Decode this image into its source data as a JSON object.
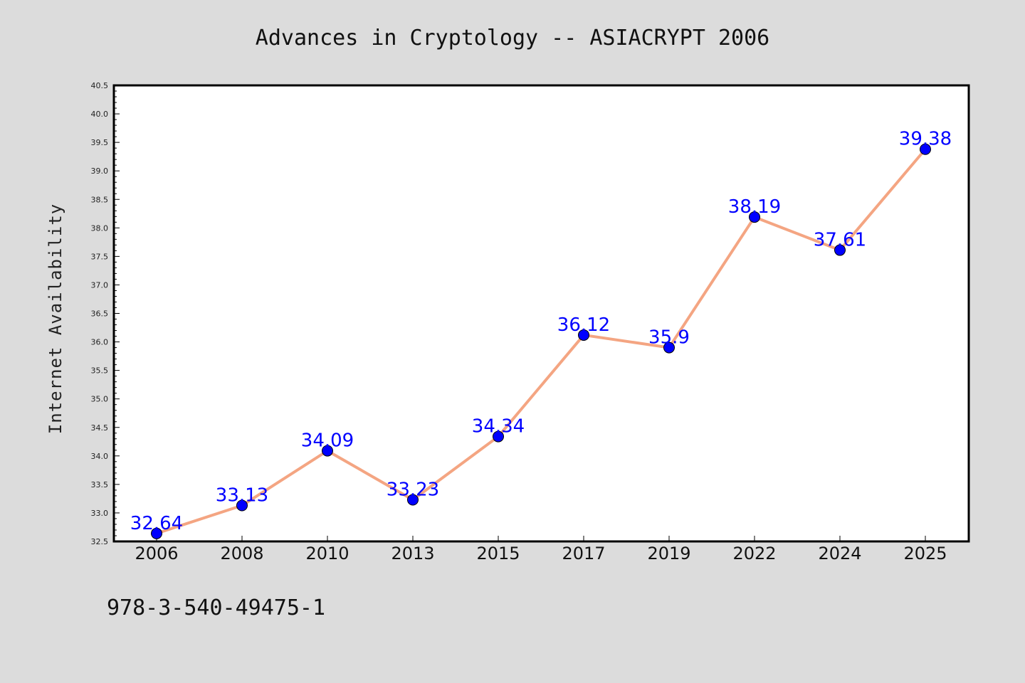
{
  "chart_data": {
    "type": "line",
    "title": "Advances in Cryptology -- ASIACRYPT 2006",
    "xlabel": "",
    "ylabel": "Internet Availability",
    "categories": [
      "2006",
      "2008",
      "2010",
      "2013",
      "2015",
      "2017",
      "2019",
      "2022",
      "2024",
      "2025"
    ],
    "series": [
      {
        "values": [
          32.64,
          33.13,
          34.09,
          33.23,
          34.34,
          36.12,
          35.9,
          38.19,
          37.61,
          39.38
        ]
      }
    ],
    "data_labels": [
      "32.64",
      "33.13",
      "34.09",
      "33.23",
      "34.34",
      "36.12",
      "35.9",
      "38.19",
      "37.61",
      "39.38"
    ],
    "ylim": [
      32.5,
      40.5
    ],
    "yticks": [
      "32.5",
      "33.0",
      "33.5",
      "34.0",
      "34.5",
      "35.0",
      "35.5",
      "36.0",
      "36.5",
      "37.0",
      "37.5",
      "38.0",
      "38.5",
      "39.0",
      "39.5",
      "40.0",
      "40.5"
    ],
    "grid": false,
    "line_color": "#f4a582",
    "marker_color": "#0000ff",
    "label_color": "#0000ff",
    "background_color": "#dcdcdc",
    "plot_background_color": "#ffffff"
  },
  "footer": {
    "text": "978-3-540-49475-1"
  }
}
